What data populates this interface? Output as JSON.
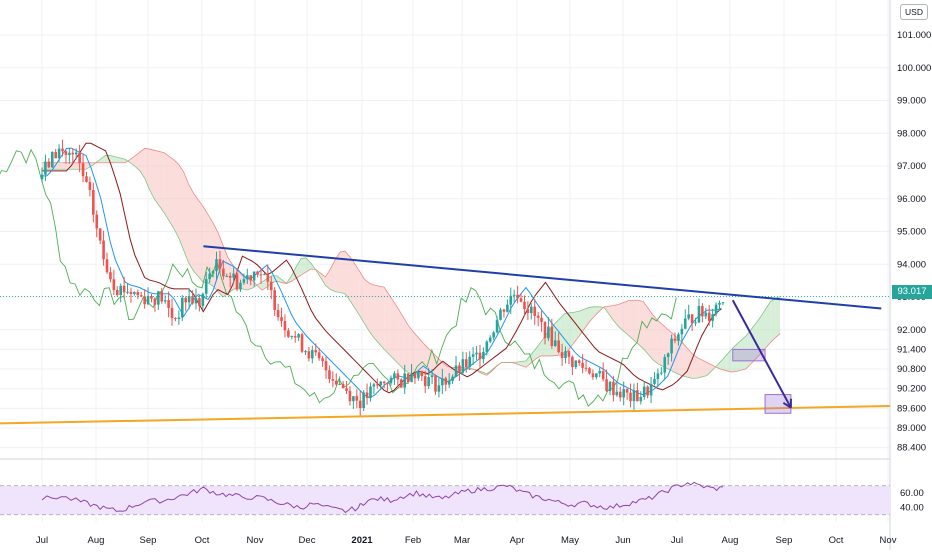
{
  "currency": "USD",
  "last_price": "93.017",
  "colors": {
    "up": "#26a69a",
    "down": "#ef5350",
    "resistance_line": "#1e3fa8",
    "support_line": "#f5a623",
    "arrow": "#3b2a9e",
    "target_box": "#9c6fd6",
    "rsi_line": "#8e44ad",
    "rsi_band": "#efe4fb",
    "cloud_bull": "#b7e1b9",
    "cloud_bear": "#f7c1bf",
    "conversion_line": "#2196f3",
    "base_line": "#8b1a1a",
    "lagging_span": "#4caf50"
  },
  "chart_data": {
    "type": "candlestick",
    "y_axis": {
      "min": 88.1,
      "max": 102.3,
      "ticks": [
        "101.000",
        "100.000",
        "99.000",
        "98.000",
        "97.000",
        "96.000",
        "95.000",
        "94.000",
        "93.000",
        "92.000",
        "91.400",
        "90.800",
        "90.200",
        "89.600",
        "89.000",
        "88.400"
      ]
    },
    "x_axis": {
      "labels": [
        "Jul",
        "Aug",
        "Sep",
        "Oct",
        "Nov",
        "Dec",
        "2021",
        "Feb",
        "Mar",
        "Apr",
        "May",
        "Jun",
        "Jul",
        "Aug",
        "Sep",
        "Oct",
        "Nov"
      ]
    },
    "price_path": [
      [
        2020.5,
        96.6
      ],
      [
        2020.53,
        97.5
      ],
      [
        2020.56,
        97.2
      ],
      [
        2020.58,
        96.0
      ],
      [
        2020.6,
        94.2
      ],
      [
        2020.62,
        93.3
      ],
      [
        2020.64,
        93.2
      ],
      [
        2020.66,
        93.0
      ],
      [
        2020.69,
        93.0
      ],
      [
        2020.71,
        92.3
      ],
      [
        2020.73,
        93.0
      ],
      [
        2020.75,
        92.8
      ],
      [
        2020.77,
        94.0
      ],
      [
        2020.79,
        93.8
      ],
      [
        2020.81,
        93.4
      ],
      [
        2020.84,
        93.9
      ],
      [
        2020.86,
        93.1
      ],
      [
        2020.88,
        92.2
      ],
      [
        2020.9,
        91.7
      ],
      [
        2020.92,
        91.3
      ],
      [
        2020.95,
        90.7
      ],
      [
        2020.97,
        90.3
      ],
      [
        2020.99,
        89.9
      ],
      [
        2021.0,
        89.8
      ],
      [
        2021.02,
        90.2
      ],
      [
        2021.04,
        90.5
      ],
      [
        2021.06,
        90.4
      ],
      [
        2021.08,
        90.8
      ],
      [
        2021.1,
        90.5
      ],
      [
        2021.12,
        90.3
      ],
      [
        2021.14,
        90.6
      ],
      [
        2021.16,
        90.9
      ],
      [
        2021.18,
        91.2
      ],
      [
        2021.2,
        91.9
      ],
      [
        2021.22,
        92.7
      ],
      [
        2021.24,
        93.2
      ],
      [
        2021.26,
        92.6
      ],
      [
        2021.28,
        92.1
      ],
      [
        2021.3,
        91.6
      ],
      [
        2021.32,
        91.1
      ],
      [
        2021.34,
        90.9
      ],
      [
        2021.36,
        90.7
      ],
      [
        2021.38,
        90.3
      ],
      [
        2021.4,
        90.1
      ],
      [
        2021.42,
        89.9
      ],
      [
        2021.44,
        90.1
      ],
      [
        2021.46,
        90.5
      ],
      [
        2021.48,
        91.5
      ],
      [
        2021.5,
        92.2
      ],
      [
        2021.52,
        92.5
      ],
      [
        2021.54,
        92.5
      ],
      [
        2021.56,
        93.02
      ]
    ],
    "series": [
      {
        "name": "Resistance trendline",
        "x": [
          2020.75,
          2021.8
        ],
        "y": [
          94.55,
          92.65
        ]
      },
      {
        "name": "Support trendline",
        "x": [
          2020.5,
          2021.83
        ],
        "y": [
          89.14,
          89.67
        ]
      },
      {
        "name": "Projected move",
        "x": [
          2021.57,
          2021.66
        ],
        "y": [
          92.9,
          89.62
        ]
      }
    ],
    "target_zones": [
      {
        "x": [
          2021.57,
          2021.62
        ],
        "y": [
          91.05,
          91.4
        ]
      },
      {
        "x": [
          2021.62,
          2021.66
        ],
        "y": [
          89.45,
          90.02
        ]
      }
    ],
    "rsi": {
      "ticks": [
        "60.00",
        "40.00"
      ],
      "levels": [
        70,
        30
      ],
      "path": [
        [
          2020.5,
          52
        ],
        [
          2020.53,
          55
        ],
        [
          2020.56,
          48
        ],
        [
          2020.58,
          43
        ],
        [
          2020.6,
          38
        ],
        [
          2020.62,
          35
        ],
        [
          2020.64,
          42
        ],
        [
          2020.66,
          48
        ],
        [
          2020.69,
          50
        ],
        [
          2020.71,
          55
        ],
        [
          2020.73,
          60
        ],
        [
          2020.75,
          66
        ],
        [
          2020.77,
          60
        ],
        [
          2020.79,
          57
        ],
        [
          2020.81,
          55
        ],
        [
          2020.84,
          53
        ],
        [
          2020.86,
          48
        ],
        [
          2020.88,
          44
        ],
        [
          2020.9,
          40
        ],
        [
          2020.92,
          45
        ],
        [
          2020.95,
          38
        ],
        [
          2020.97,
          35
        ],
        [
          2020.99,
          40
        ],
        [
          2021.0,
          48
        ],
        [
          2021.02,
          52
        ],
        [
          2021.04,
          50
        ],
        [
          2021.06,
          56
        ],
        [
          2021.08,
          60
        ],
        [
          2021.1,
          55
        ],
        [
          2021.12,
          52
        ],
        [
          2021.14,
          58
        ],
        [
          2021.16,
          63
        ],
        [
          2021.18,
          65
        ],
        [
          2021.2,
          67
        ],
        [
          2021.22,
          70
        ],
        [
          2021.24,
          62
        ],
        [
          2021.26,
          56
        ],
        [
          2021.28,
          52
        ],
        [
          2021.3,
          47
        ],
        [
          2021.32,
          44
        ],
        [
          2021.34,
          46
        ],
        [
          2021.36,
          42
        ],
        [
          2021.38,
          40
        ],
        [
          2021.4,
          44
        ],
        [
          2021.42,
          48
        ],
        [
          2021.44,
          52
        ],
        [
          2021.46,
          60
        ],
        [
          2021.48,
          68
        ],
        [
          2021.5,
          74
        ],
        [
          2021.52,
          70
        ],
        [
          2021.54,
          66
        ],
        [
          2021.56,
          67
        ]
      ]
    }
  }
}
